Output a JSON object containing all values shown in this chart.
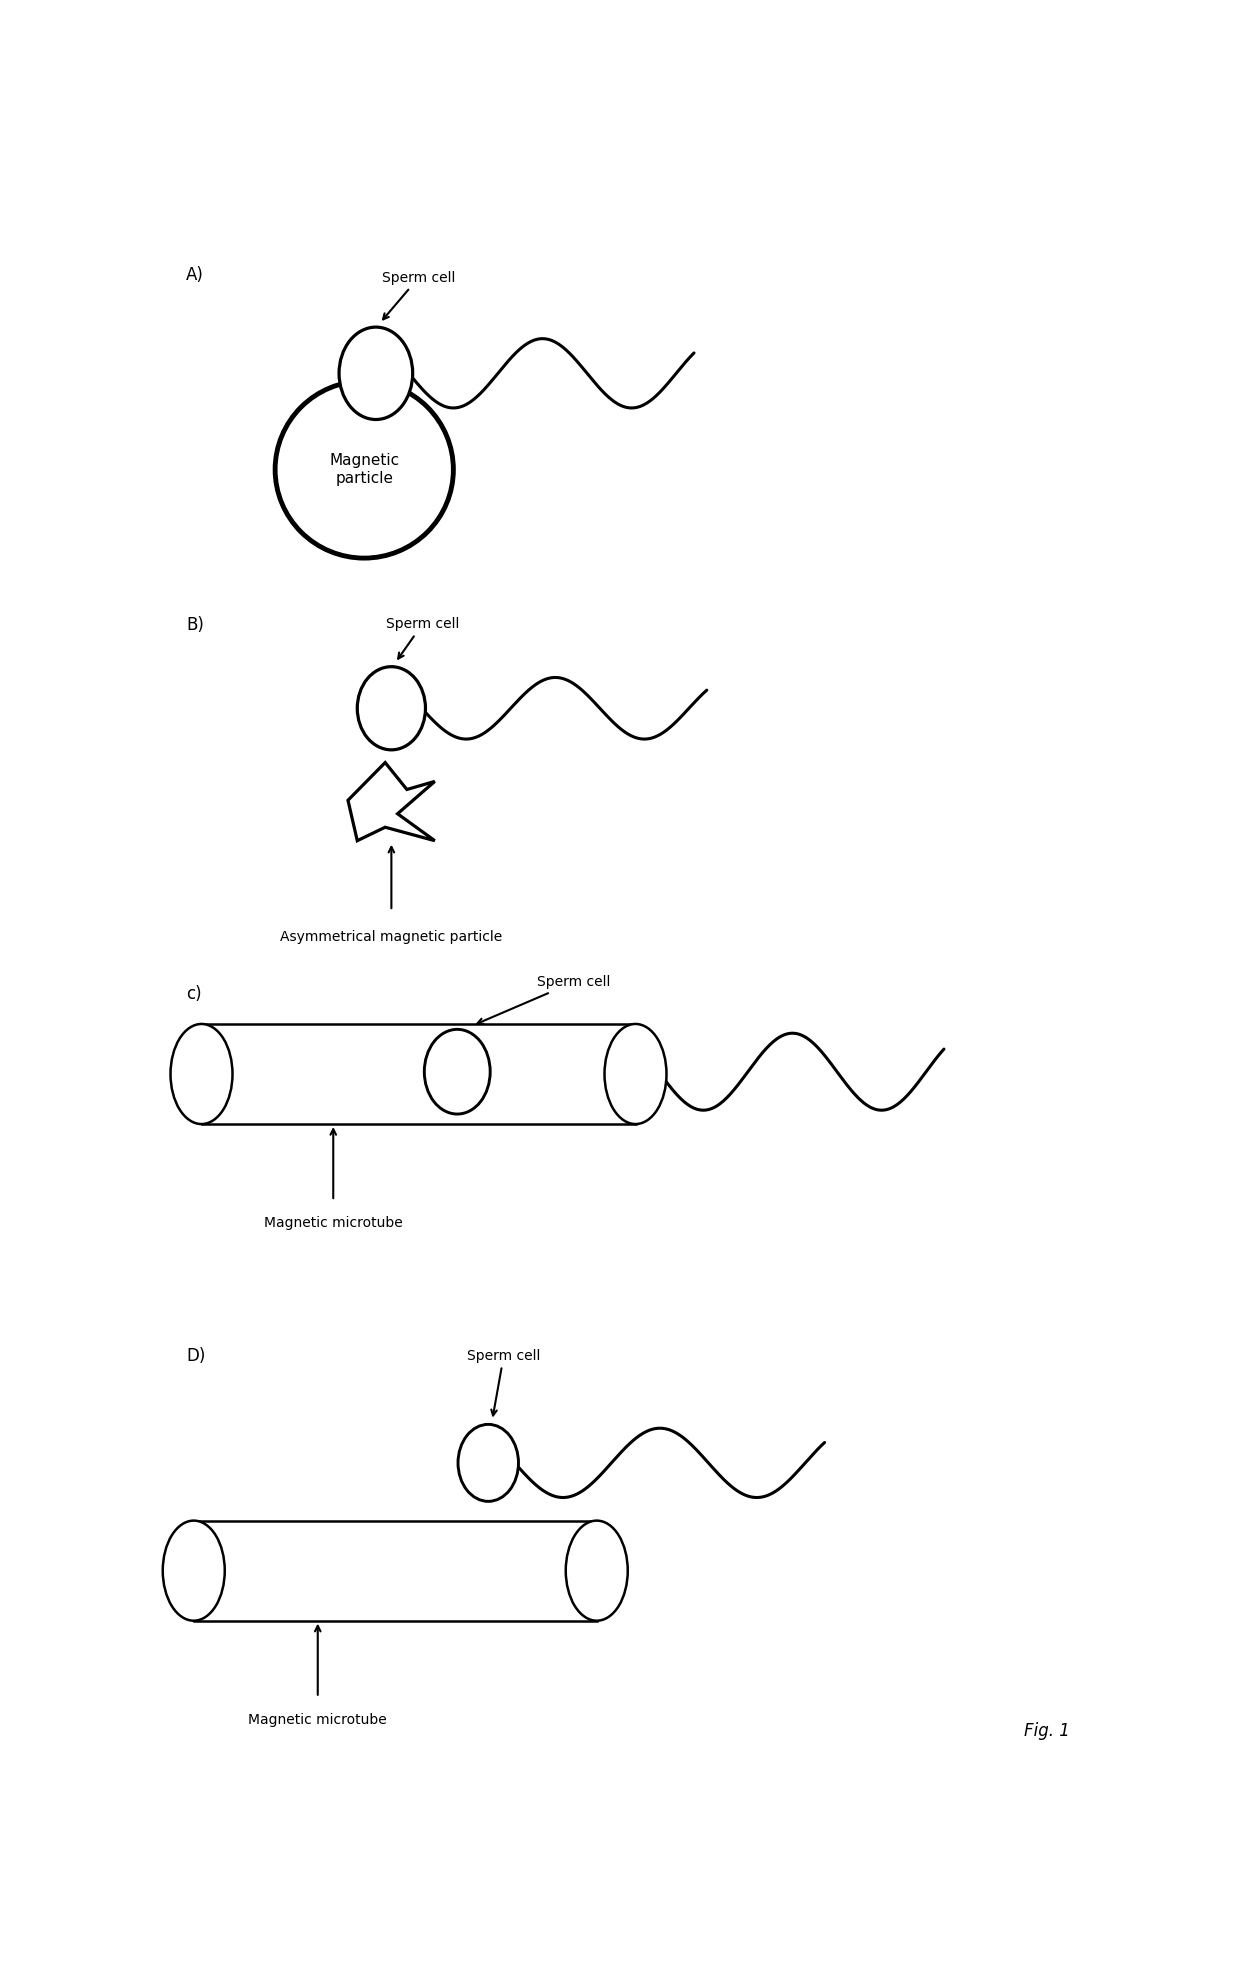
{
  "bg_color": "#ffffff",
  "label_A": "A)",
  "label_B": "B)",
  "label_C": "c)",
  "label_D": "D)",
  "text_sperm": "Sperm cell",
  "text_mag_particle": "Magnetic\nparticle",
  "text_asym": "Asymmetrical magnetic particle",
  "text_microtube_C": "Magnetic microtube",
  "text_microtube_D": "Magnetic microtube",
  "fig_label": "Fig. 1",
  "line_color": "#000000",
  "lw_thin": 1.8,
  "lw_thick": 2.2,
  "lw_mag": 3.5,
  "font_size_label": 12,
  "font_size_text": 10,
  "font_size_fig": 12
}
